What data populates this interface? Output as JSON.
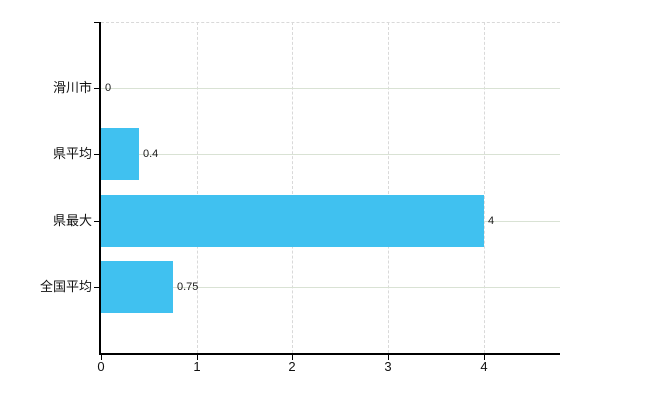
{
  "chart_data": {
    "type": "bar",
    "orientation": "horizontal",
    "title": "",
    "categories": [
      "滑川市",
      "県平均",
      "県最大",
      "全国平均"
    ],
    "values": [
      0,
      0.4,
      4,
      0.75
    ],
    "value_labels": [
      "0",
      "0.4",
      "4",
      "0.75"
    ],
    "xlim": [
      0,
      4.8
    ],
    "xticks": [
      0,
      1,
      2,
      3,
      4
    ],
    "xtick_labels": [
      "0",
      "1",
      "2",
      "3",
      "4"
    ],
    "ylabel": "",
    "xlabel": "",
    "legend_position": "none",
    "grid": "on",
    "colors": {
      "bar": "#40c1f0",
      "axis": "#000000",
      "v_gridline": "#d9d9d9",
      "h_gridline": "#d9e2d4",
      "text": "#111111",
      "background": "#ffffff"
    }
  }
}
